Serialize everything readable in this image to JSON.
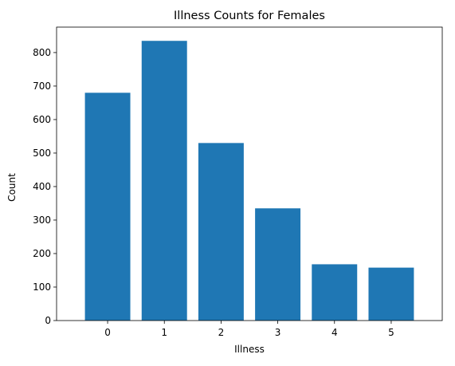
{
  "chart_data": {
    "type": "bar",
    "title": "Illness Counts for Females",
    "xlabel": "Illness",
    "ylabel": "Count",
    "categories": [
      "0",
      "1",
      "2",
      "3",
      "4",
      "5"
    ],
    "values": [
      680,
      835,
      530,
      335,
      168,
      158
    ],
    "ylim": [
      0,
      876
    ],
    "yticks": [
      0,
      100,
      200,
      300,
      400,
      500,
      600,
      700,
      800
    ],
    "grid": false,
    "bar_color": "#1f77b4"
  }
}
